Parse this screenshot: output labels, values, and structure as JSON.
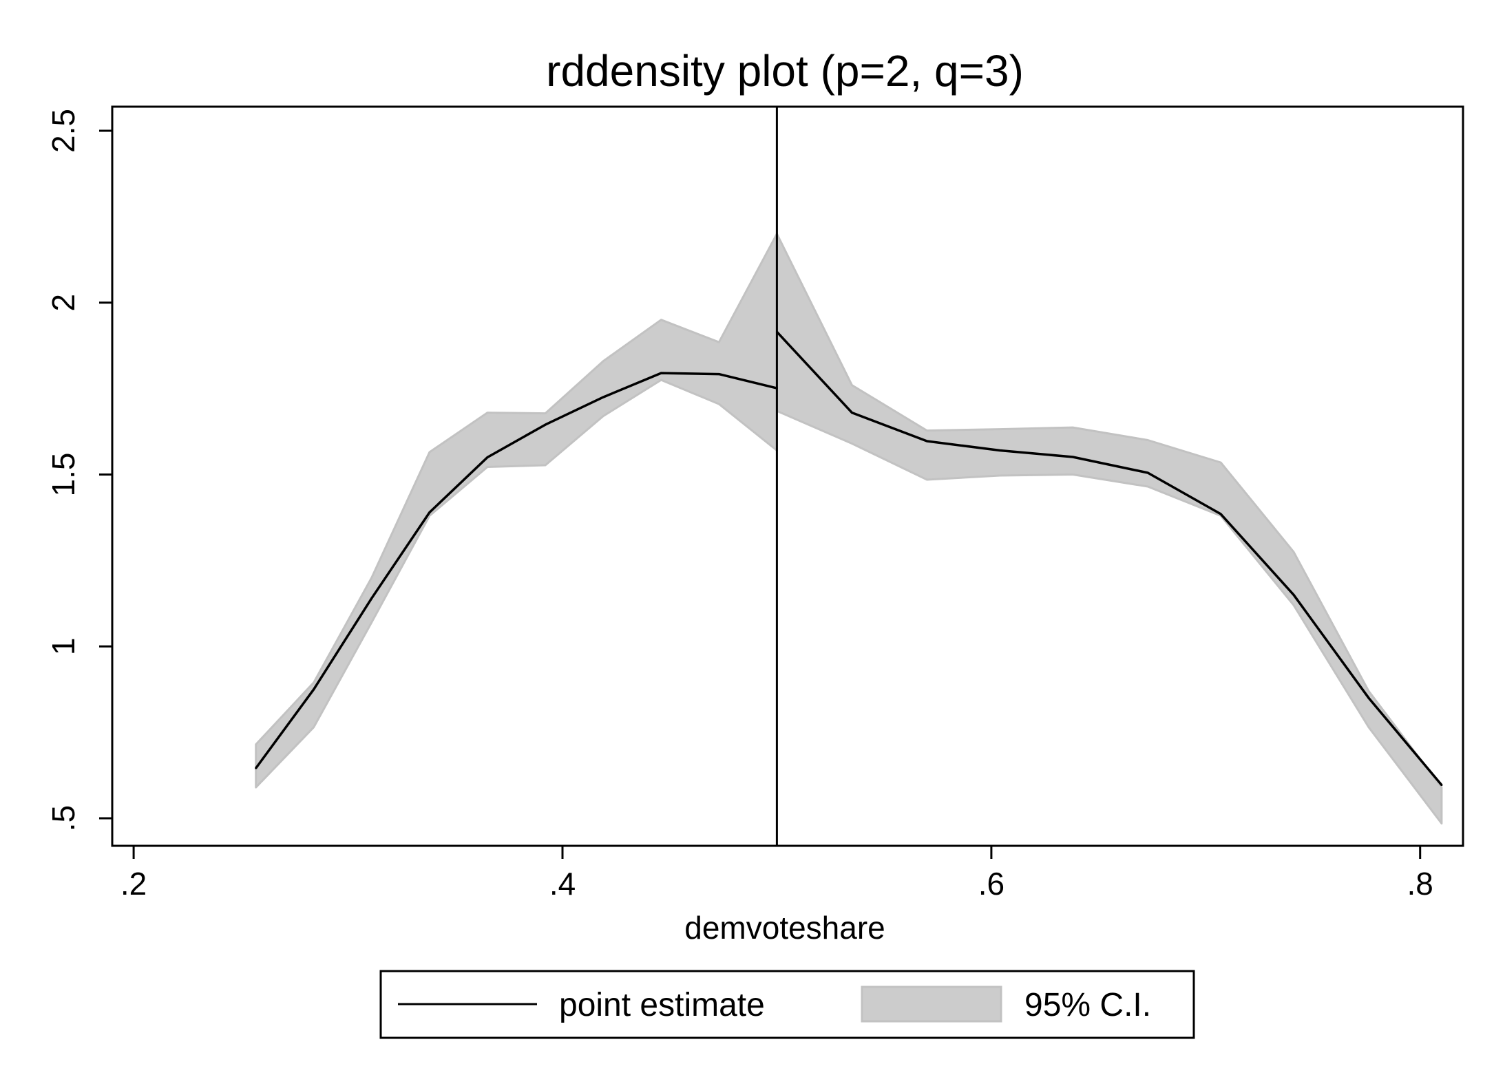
{
  "chart_data": {
    "type": "line",
    "title": "rddensity plot (p=2, q=3)",
    "xlabel": "demvoteshare",
    "ylabel": "",
    "xlim": [
      0.19,
      0.82
    ],
    "ylim": [
      0.42,
      2.57
    ],
    "x_ticks": [
      0.2,
      0.4,
      0.6,
      0.8
    ],
    "x_tick_labels": [
      ".2",
      ".4",
      ".6",
      ".8"
    ],
    "y_ticks": [
      0.5,
      1.0,
      1.5,
      2.0,
      2.5
    ],
    "y_tick_labels": [
      ".5",
      "1",
      "1.5",
      "2",
      "2.5"
    ],
    "cutoff": 0.5,
    "grid": false,
    "legend": {
      "placement": "bottom"
    },
    "colors": {
      "line": "#000000",
      "band": "#cccccc",
      "band_edge": "#c2c2c2",
      "frame": "#000000"
    },
    "series": [
      {
        "name": "point estimate",
        "segments": [
          {
            "x": [
              0.257,
              0.284,
              0.311,
              0.338,
              0.365,
              0.392,
              0.419,
              0.446,
              0.473,
              0.5
            ],
            "y": [
              0.646,
              0.875,
              1.14,
              1.39,
              1.55,
              1.645,
              1.725,
              1.795,
              1.792,
              1.751
            ]
          },
          {
            "x": [
              0.5,
              0.535,
              0.57,
              0.604,
              0.638,
              0.673,
              0.707,
              0.741,
              0.776,
              0.81
            ],
            "y": [
              1.915,
              1.68,
              1.597,
              1.57,
              1.551,
              1.505,
              1.385,
              1.15,
              0.85,
              0.597
            ]
          }
        ]
      },
      {
        "name": "95% C.I.",
        "segments": [
          {
            "x": [
              0.257,
              0.284,
              0.311,
              0.338,
              0.365,
              0.392,
              0.419,
              0.446,
              0.473,
              0.5
            ],
            "lower": [
              0.59,
              0.765,
              1.07,
              1.38,
              1.522,
              1.527,
              1.67,
              1.775,
              1.705,
              1.57
            ],
            "upper": [
              0.715,
              0.895,
              1.2,
              1.565,
              1.68,
              1.678,
              1.83,
              1.95,
              1.885,
              2.2
            ]
          },
          {
            "x": [
              0.5,
              0.535,
              0.57,
              0.604,
              0.638,
              0.673,
              0.707,
              0.741,
              0.776,
              0.81
            ],
            "lower": [
              1.685,
              1.59,
              1.485,
              1.497,
              1.5,
              1.465,
              1.38,
              1.12,
              0.765,
              0.485
            ]
          },
          {
            "x": [
              0.5,
              0.535,
              0.57,
              0.604,
              0.638,
              0.673,
              0.707,
              0.741,
              0.776,
              0.81
            ],
            "upper": [
              2.2,
              1.76,
              1.628,
              1.632,
              1.637,
              1.6,
              1.535,
              1.275,
              0.87,
              0.59
            ]
          }
        ]
      }
    ],
    "legend_entries": [
      {
        "label": "point estimate",
        "style": "line"
      },
      {
        "label": "95% C.I.",
        "style": "area"
      }
    ]
  }
}
